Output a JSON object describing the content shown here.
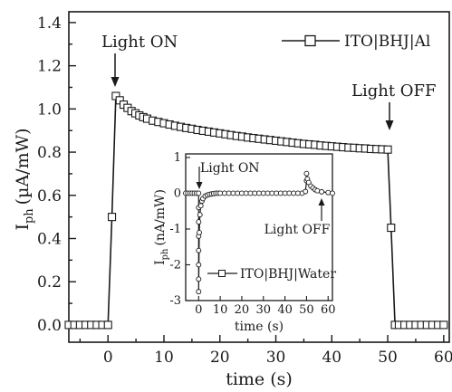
{
  "chart_data": [
    {
      "type": "line",
      "xlabel": "time (s)",
      "ylabel_main": "I",
      "ylabel_sub": "ph",
      "ylabel_unit": "(µA/mW)",
      "xlim": [
        -7,
        61
      ],
      "ylim": [
        -0.08,
        1.45
      ],
      "xticks": [
        0,
        10,
        20,
        30,
        40,
        50,
        60
      ],
      "xtick_labels": [
        "0",
        "10",
        "20",
        "30",
        "40",
        "50",
        "60"
      ],
      "yticks": [
        0.0,
        0.2,
        0.4,
        0.6,
        0.8,
        1.0,
        1.2,
        1.4
      ],
      "ytick_labels": [
        "0.0",
        "0.2",
        "0.4",
        "0.6",
        "0.8",
        "1.0",
        "1.2",
        "1.4"
      ],
      "grid": false,
      "legend_position": "top-right",
      "series": [
        {
          "name": "ITO|BHJ|Al",
          "marker": "square",
          "color": "#1a1a1a",
          "x": [
            -7,
            -6,
            -5,
            -4,
            -3,
            -2,
            -1,
            0,
            0.7,
            1.4,
            2.1,
            2.8,
            3.5,
            4.2,
            4.9,
            5.6,
            6.3,
            7,
            8,
            9,
            10,
            11,
            12,
            13,
            14,
            15,
            16,
            17,
            18,
            19,
            20,
            21,
            22,
            23,
            24,
            25,
            26,
            27,
            28,
            29,
            30,
            31,
            32,
            33,
            34,
            35,
            36,
            37,
            38,
            39,
            40,
            41,
            42,
            43,
            44,
            45,
            46,
            47,
            48,
            49,
            50,
            50.6,
            51.3,
            52,
            53,
            54,
            55,
            56,
            57,
            58,
            59,
            60
          ],
          "y": [
            0.0,
            0.0,
            0.0,
            0.0,
            0.0,
            0.0,
            0.0,
            0.0,
            0.5,
            1.06,
            1.04,
            1.02,
            1.005,
            0.99,
            0.98,
            0.97,
            0.962,
            0.955,
            0.946,
            0.94,
            0.934,
            0.928,
            0.922,
            0.917,
            0.912,
            0.908,
            0.903,
            0.899,
            0.895,
            0.891,
            0.887,
            0.883,
            0.879,
            0.875,
            0.872,
            0.868,
            0.865,
            0.862,
            0.859,
            0.856,
            0.853,
            0.85,
            0.847,
            0.844,
            0.841,
            0.838,
            0.836,
            0.834,
            0.831,
            0.829,
            0.827,
            0.825,
            0.823,
            0.821,
            0.82,
            0.818,
            0.817,
            0.815,
            0.814,
            0.813,
            0.812,
            0.45,
            0.0,
            0.0,
            0.0,
            0.0,
            0.0,
            0.0,
            0.0,
            0.0,
            0.0,
            0.0
          ]
        }
      ],
      "annotations": [
        {
          "text": "Light ON",
          "arrow_at": {
            "x": 1.4,
            "y": 1.06
          }
        },
        {
          "text": "Light OFF",
          "arrow_at": {
            "x": 50,
            "y": 0.812
          }
        }
      ]
    },
    {
      "type": "line",
      "role": "inset",
      "xlabel": "time (s)",
      "ylabel_main": "I",
      "ylabel_sub": "ph",
      "ylabel_unit": "(nA/mW)",
      "xlim": [
        -6,
        62
      ],
      "ylim": [
        -3,
        1.1
      ],
      "xticks": [
        0,
        10,
        20,
        30,
        40,
        50,
        60
      ],
      "xtick_labels": [
        "0",
        "10",
        "20",
        "30",
        "40",
        "50",
        "60"
      ],
      "yticks": [
        1,
        0,
        -1,
        -2,
        -3
      ],
      "ytick_labels": [
        "1",
        "0",
        "-1",
        "-2",
        "-3"
      ],
      "grid": false,
      "legend_position": "bottom-right",
      "series": [
        {
          "name": "ITO|BHJ|Water",
          "marker": "circle",
          "color": "#1a1a1a",
          "x": [
            -6,
            -5,
            -4,
            -3,
            -2,
            -1,
            0,
            0,
            0,
            0,
            0,
            0,
            0,
            0,
            0.3,
            0.6,
            1,
            1.5,
            2,
            3,
            4,
            5,
            6,
            7,
            8,
            9,
            10,
            12,
            14,
            16,
            18,
            20,
            22,
            24,
            26,
            28,
            30,
            32,
            34,
            36,
            38,
            40,
            42,
            44,
            46,
            48,
            49.5,
            50,
            50,
            50.4,
            51,
            52,
            53,
            54,
            55,
            57,
            60,
            62
          ],
          "y": [
            0.0,
            0.0,
            0.0,
            0.0,
            0.0,
            0.0,
            0.0,
            -0.4,
            -0.8,
            -1.2,
            -1.6,
            -2.0,
            -2.4,
            -2.75,
            -1.1,
            -0.6,
            -0.35,
            -0.22,
            -0.15,
            -0.08,
            -0.05,
            -0.03,
            -0.02,
            -0.01,
            0.0,
            0.0,
            0.0,
            0.0,
            0.0,
            0.0,
            0.0,
            0.0,
            0.0,
            0.0,
            0.0,
            0.0,
            0.0,
            0.0,
            0.0,
            0.0,
            0.0,
            0.0,
            0.0,
            0.0,
            0.0,
            0.0,
            0.05,
            0.35,
            0.55,
            0.4,
            0.3,
            0.2,
            0.15,
            0.1,
            0.07,
            0.04,
            0.02,
            0.0
          ]
        }
      ],
      "annotations": [
        {
          "text": "Light ON",
          "arrow_at": {
            "x": 0,
            "y": 0
          }
        },
        {
          "text": "Light OFF",
          "arrow_at": {
            "x": 50,
            "y": 0.1
          }
        }
      ]
    }
  ]
}
